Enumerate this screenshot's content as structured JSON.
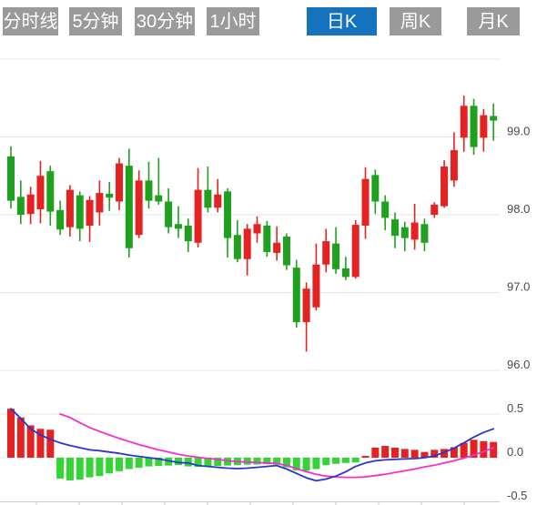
{
  "tabs": {
    "items": [
      {
        "label": "分时线",
        "active": false
      },
      {
        "label": "5分钟",
        "active": false
      },
      {
        "label": "30分钟",
        "active": false
      },
      {
        "label": "1小时",
        "active": false
      },
      {
        "label": "日K",
        "active": true
      },
      {
        "label": "周K",
        "active": false
      },
      {
        "label": "月K",
        "active": false
      }
    ]
  },
  "colors": {
    "tab_bg": "#9a9a9a",
    "tab_active_bg": "#1573be",
    "tab_text": "#ffffff",
    "up": "#e42222",
    "down": "#1fa11f",
    "hist_up": "#e42222",
    "hist_down": "#35d435",
    "dif_line": "#2936cc",
    "dea_line": "#f330cb",
    "gridline": "#e4e4e4",
    "axis_line": "#c9c9c9",
    "label_text": "#4a4a4a"
  },
  "chart_data": {
    "type": "candlestick+macd",
    "timeframe_selected": "日K",
    "legend": "none",
    "grid": "horizontal-only",
    "price_panel": {
      "ylim": [
        95.8,
        100.2
      ],
      "gridline_values": [
        100.0,
        99.0,
        98.0,
        97.0,
        96.0
      ],
      "tick_labels": [
        {
          "label": "99.0",
          "value": 99.0
        },
        {
          "label": "98.0",
          "value": 98.0
        },
        {
          "label": "97.0",
          "value": 97.0
        },
        {
          "label": "96.0",
          "value": 96.0
        }
      ]
    },
    "indicator_panel": {
      "ylim": [
        -0.55,
        0.6
      ],
      "gridline_values": [
        0.5,
        0.0
      ],
      "tick_labels": [
        {
          "label": "0.5",
          "value": 0.5
        },
        {
          "label": "0.0",
          "value": 0.0
        },
        {
          "label": "-0.5",
          "value": -0.5
        }
      ],
      "axis_tick_xs": [
        40,
        87,
        134,
        181,
        228,
        275,
        322,
        369,
        416,
        463,
        510
      ]
    },
    "candles_ohlc": [
      [
        98.75,
        98.88,
        98.08,
        98.18
      ],
      [
        98.23,
        98.44,
        97.88,
        98.0
      ],
      [
        98.01,
        98.36,
        97.88,
        98.26
      ],
      [
        98.07,
        98.69,
        97.89,
        98.5
      ],
      [
        98.56,
        98.63,
        97.86,
        98.04
      ],
      [
        98.06,
        98.18,
        97.74,
        97.81
      ],
      [
        97.84,
        98.38,
        97.72,
        98.32
      ],
      [
        98.25,
        98.3,
        97.66,
        97.82
      ],
      [
        97.86,
        98.24,
        97.65,
        98.19
      ],
      [
        98.03,
        98.44,
        97.86,
        98.28
      ],
      [
        98.27,
        98.42,
        98.05,
        98.22
      ],
      [
        98.17,
        98.73,
        98.06,
        98.66
      ],
      [
        98.63,
        98.85,
        97.45,
        97.57
      ],
      [
        97.74,
        98.57,
        97.7,
        98.44
      ],
      [
        98.44,
        98.68,
        98.08,
        98.18
      ],
      [
        98.25,
        98.73,
        98.13,
        98.17
      ],
      [
        98.17,
        98.34,
        97.76,
        97.84
      ],
      [
        97.88,
        98.11,
        97.7,
        97.82
      ],
      [
        97.86,
        97.95,
        97.52,
        97.66
      ],
      [
        97.64,
        98.6,
        97.58,
        98.32
      ],
      [
        98.32,
        98.62,
        98.03,
        98.09
      ],
      [
        98.09,
        98.46,
        98.03,
        98.26
      ],
      [
        98.3,
        98.34,
        97.45,
        97.7
      ],
      [
        97.74,
        97.93,
        97.39,
        97.43
      ],
      [
        97.43,
        97.88,
        97.22,
        97.82
      ],
      [
        97.76,
        97.98,
        97.64,
        97.88
      ],
      [
        97.86,
        97.92,
        97.46,
        97.52
      ],
      [
        97.51,
        97.85,
        97.41,
        97.64
      ],
      [
        97.72,
        97.76,
        97.29,
        97.35
      ],
      [
        97.32,
        97.42,
        96.55,
        96.62
      ],
      [
        96.62,
        97.13,
        96.24,
        97.05
      ],
      [
        96.81,
        97.63,
        96.77,
        97.36
      ],
      [
        97.36,
        97.82,
        97.26,
        97.66
      ],
      [
        97.63,
        97.84,
        97.24,
        97.3
      ],
      [
        97.31,
        97.46,
        97.16,
        97.2
      ],
      [
        97.2,
        97.93,
        97.18,
        97.87
      ],
      [
        97.86,
        98.61,
        97.69,
        98.46
      ],
      [
        98.51,
        98.58,
        98.01,
        98.17
      ],
      [
        98.17,
        98.25,
        97.8,
        97.96
      ],
      [
        97.94,
        98.03,
        97.57,
        97.73
      ],
      [
        97.84,
        97.91,
        97.53,
        97.7
      ],
      [
        97.68,
        98.14,
        97.55,
        97.9
      ],
      [
        97.88,
        97.95,
        97.53,
        97.64
      ],
      [
        98.0,
        98.16,
        97.96,
        98.13
      ],
      [
        98.11,
        98.7,
        98.09,
        98.62
      ],
      [
        98.44,
        99.06,
        98.36,
        98.83
      ],
      [
        98.99,
        99.53,
        98.81,
        99.4
      ],
      [
        99.4,
        99.49,
        98.77,
        98.87
      ],
      [
        98.99,
        99.36,
        98.81,
        99.28
      ],
      [
        99.27,
        99.43,
        98.95,
        99.21
      ]
    ],
    "macd_histogram": [
      0.56,
      0.46,
      0.37,
      0.33,
      0.32,
      -0.24,
      -0.26,
      -0.25,
      -0.225,
      -0.21,
      -0.18,
      -0.155,
      -0.13,
      -0.115,
      -0.1,
      -0.095,
      -0.09,
      -0.085,
      -0.1,
      -0.105,
      -0.1,
      -0.095,
      -0.09,
      -0.085,
      -0.08,
      -0.078,
      -0.075,
      -0.08,
      -0.11,
      -0.145,
      -0.15,
      -0.13,
      -0.085,
      -0.07,
      -0.06,
      -0.055,
      0.02,
      0.115,
      0.135,
      0.115,
      0.1,
      0.09,
      0.065,
      0.09,
      0.1,
      0.12,
      0.17,
      0.205,
      0.19,
      0.18
    ],
    "dif_series": [
      0.56,
      0.45,
      0.33,
      0.26,
      0.21,
      0.17,
      0.14,
      0.115,
      0.09,
      0.08,
      0.065,
      0.05,
      0.03,
      0.015,
      0.0,
      -0.015,
      -0.035,
      -0.055,
      -0.06,
      -0.09,
      -0.1,
      -0.11,
      -0.12,
      -0.125,
      -0.12,
      -0.11,
      -0.1,
      -0.09,
      -0.13,
      -0.18,
      -0.23,
      -0.265,
      -0.245,
      -0.21,
      -0.16,
      -0.1,
      -0.06,
      -0.035,
      -0.025,
      -0.02,
      -0.015,
      -0.01,
      0.0,
      0.02,
      0.06,
      0.11,
      0.17,
      0.235,
      0.29,
      0.33
    ],
    "dea_series": [
      null,
      null,
      null,
      null,
      null,
      0.5,
      0.46,
      0.4,
      0.345,
      0.3,
      0.26,
      0.22,
      0.185,
      0.15,
      0.12,
      0.09,
      0.065,
      0.04,
      0.02,
      0.005,
      -0.01,
      -0.02,
      -0.035,
      -0.045,
      -0.05,
      -0.055,
      -0.06,
      -0.065,
      -0.09,
      -0.125,
      -0.16,
      -0.19,
      -0.21,
      -0.22,
      -0.225,
      -0.225,
      -0.22,
      -0.205,
      -0.19,
      -0.17,
      -0.15,
      -0.13,
      -0.105,
      -0.085,
      -0.06,
      -0.035,
      -0.005,
      0.03,
      0.07,
      0.115
    ]
  }
}
